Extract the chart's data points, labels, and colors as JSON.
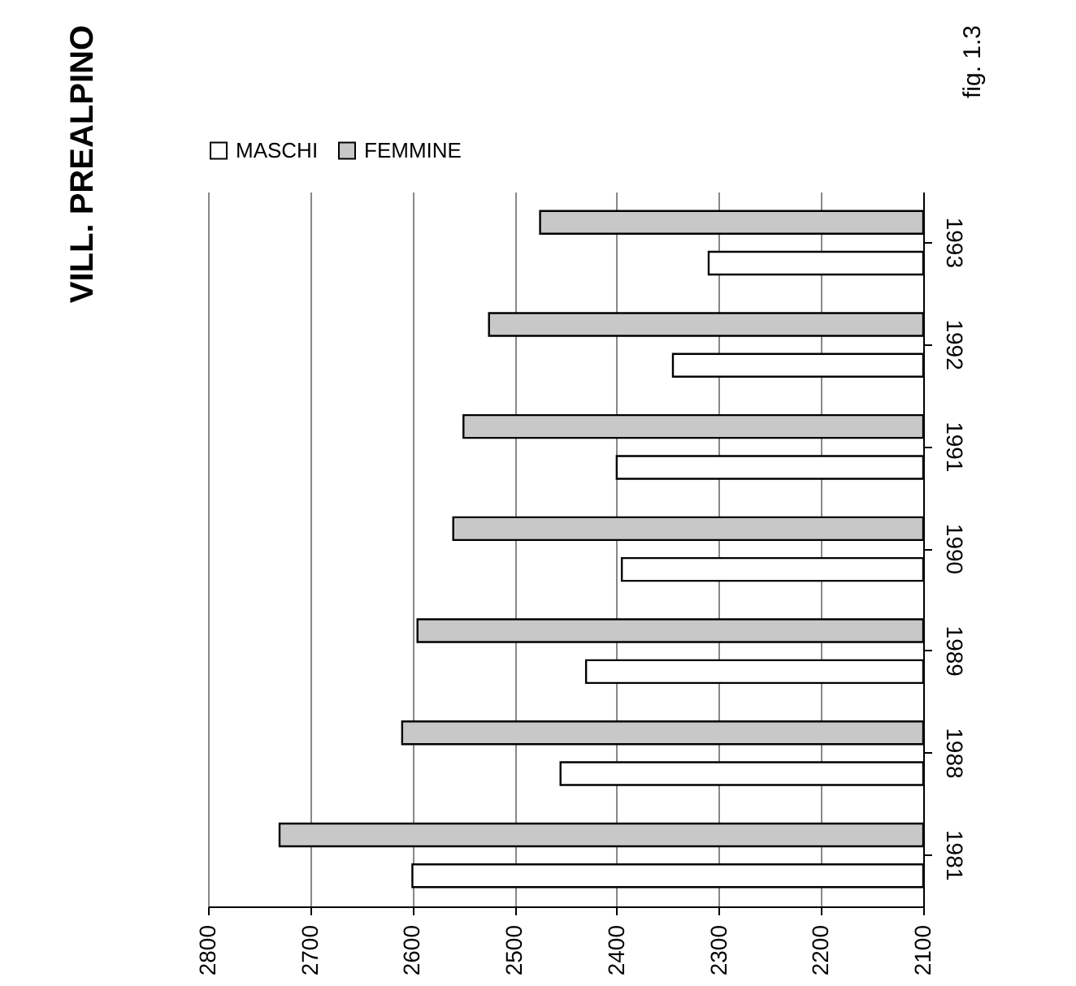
{
  "chart_data": {
    "type": "bar",
    "title": "VILL. PREALPINO",
    "orientation": "horizontal",
    "categories": [
      "1993",
      "1992",
      "1991",
      "1990",
      "1989",
      "1988",
      "1981"
    ],
    "series": [
      {
        "name": "MASCHI",
        "color": "#ffffff",
        "values": [
          2310,
          2345,
          2400,
          2395,
          2430,
          2455,
          2600
        ]
      },
      {
        "name": "FEMMINE",
        "color": "#c8c8c8",
        "values": [
          2475,
          2525,
          2550,
          2560,
          2595,
          2610,
          2730
        ]
      }
    ],
    "xlim": [
      2800,
      2100
    ],
    "xticks": [
      2800,
      2700,
      2600,
      2500,
      2400,
      2300,
      2200,
      2100
    ],
    "grid": "x",
    "legend": "top",
    "annotations": [
      "fig. 1.3"
    ]
  }
}
